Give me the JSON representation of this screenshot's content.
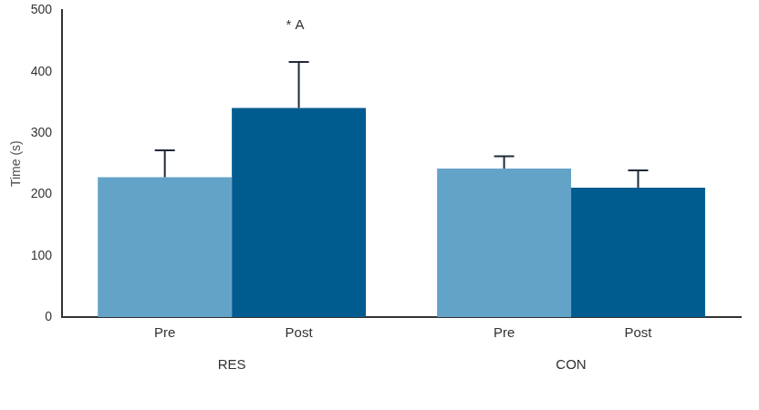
{
  "chart_data": {
    "type": "bar",
    "y_label": "Time (s)",
    "categories": [
      "RES",
      "CON"
    ],
    "series": [
      {
        "name": "Pre",
        "color": "#64a3c8",
        "values": [
          228,
          242
        ],
        "errors": [
          44,
          20
        ]
      },
      {
        "name": "Post",
        "color": "#005b8f",
        "values": [
          341,
          211
        ],
        "errors": [
          75,
          28
        ]
      }
    ],
    "annotations": [
      {
        "text": "* A",
        "category": "RES",
        "series": "Post"
      }
    ],
    "ylim": [
      0,
      500
    ],
    "yticks": [
      0,
      100,
      200,
      300,
      400,
      500
    ],
    "grid": false
  }
}
